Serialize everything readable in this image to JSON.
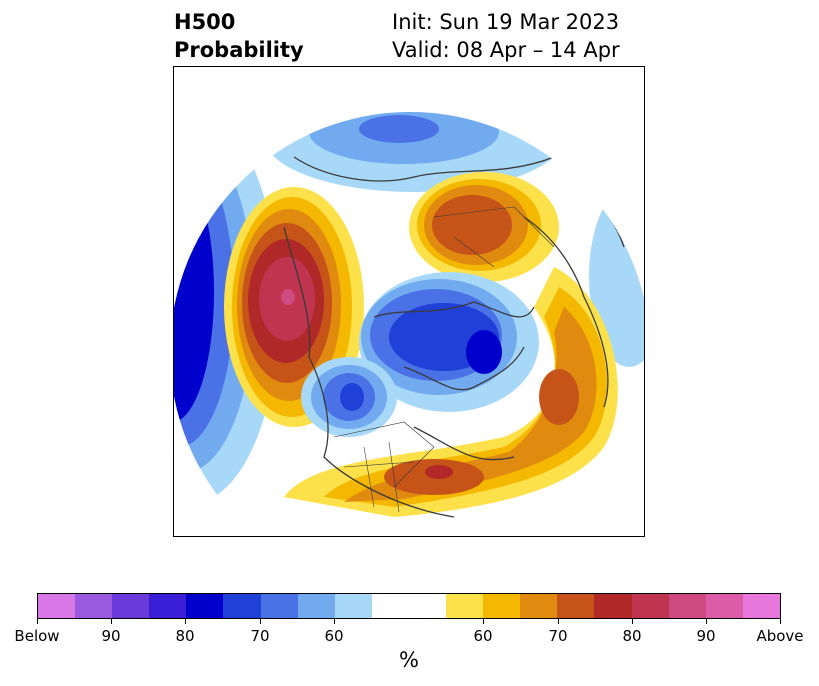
{
  "header": {
    "title_line1": "H500",
    "title_line2": "Probability",
    "init_text": "Init: Sun 19 Mar 2023",
    "valid_text": "Valid: 08 Apr – 14 Apr"
  },
  "colorbar": {
    "unit_label": "%",
    "tick_labels": [
      "Below",
      "90",
      "80",
      "70",
      "60",
      "60",
      "70",
      "80",
      "90",
      "Above"
    ],
    "below_colors": [
      "#d977e8",
      "#9a5ae0",
      "#6a3adb",
      "#3a1fd6",
      "#0000cc",
      "#2040d8",
      "#4a72e6",
      "#72aaf0",
      "#a8d8f8"
    ],
    "neutral_color": "#ffffff",
    "above_colors": [
      "#fde14a",
      "#f5b800",
      "#e08a10",
      "#c65418",
      "#b02828",
      "#c03450",
      "#cf4a80",
      "#dc5ca8",
      "#e877dc"
    ]
  },
  "map": {
    "projection": "north-polar-stereographic",
    "below_normal_color": "#2a46d8",
    "above_normal_color": "#d8741a",
    "coastline_color": "#3a3a3a"
  }
}
